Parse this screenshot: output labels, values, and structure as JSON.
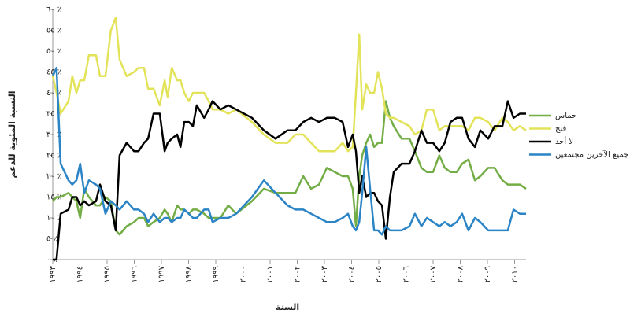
{
  "chart_data": {
    "type": "line",
    "y_label": "النسبة المئوية للدعم",
    "x_label": "السنة",
    "x": [
      1993.0,
      1993.14,
      1993.29,
      1993.58,
      1993.72,
      1993.87,
      1994.01,
      1994.16,
      1994.33,
      1994.59,
      1994.74,
      1994.94,
      1995.14,
      1995.32,
      1995.46,
      1995.72,
      1995.99,
      1996.16,
      1996.36,
      1996.51,
      1996.71,
      1996.94,
      1997.12,
      1997.23,
      1997.38,
      1997.58,
      1997.7,
      1997.84,
      1998.01,
      1998.16,
      1998.3,
      1998.57,
      1998.74,
      1998.88,
      1999.17,
      1999.46,
      1999.75,
      2000.33,
      2000.77,
      2001.2,
      2001.64,
      2001.93,
      2002.22,
      2002.51,
      2002.8,
      2003.09,
      2003.38,
      2003.67,
      2003.87,
      2004.04,
      2004.16,
      2004.28,
      2004.39,
      2004.54,
      2004.68,
      2004.83,
      2004.97,
      2005.12,
      2005.26,
      2005.41,
      2005.55,
      2005.84,
      2006.13,
      2006.33,
      2006.57,
      2006.77,
      2007.0,
      2007.23,
      2007.43,
      2007.64,
      2007.87,
      2008.07,
      2008.3,
      2008.54,
      2008.74,
      2009.03,
      2009.26,
      2009.55,
      2009.75,
      2009.96,
      2010.19,
      2010.42
    ],
    "series": [
      {
        "name": "حماس",
        "color": "#73ad45",
        "values": [
          14,
          15,
          15,
          16,
          15,
          14,
          10,
          17,
          15,
          13,
          13,
          15,
          14,
          7,
          6,
          8,
          9,
          10,
          10,
          8,
          9,
          10,
          12,
          11,
          9,
          13,
          12,
          12,
          11,
          12,
          12,
          11,
          10,
          10,
          10,
          13,
          11,
          14,
          17,
          16,
          16,
          16,
          20,
          17,
          18,
          22,
          21,
          20,
          20,
          17,
          8,
          20,
          25,
          28,
          30,
          27,
          28,
          28,
          38,
          34,
          32,
          29,
          29,
          26,
          22,
          21,
          21,
          25,
          22,
          21,
          21,
          23,
          24,
          19,
          20,
          22,
          22,
          19,
          18,
          18,
          18,
          17
        ]
      },
      {
        "name": "فتح",
        "color": "#e3e35a",
        "values": [
          44,
          40,
          35,
          38,
          44,
          40,
          43,
          43,
          49,
          49,
          44,
          44,
          55,
          58,
          48,
          44,
          45,
          46,
          46,
          41,
          41,
          37,
          43,
          39,
          46,
          43,
          43,
          40,
          38,
          40,
          40,
          40,
          38,
          36,
          36,
          35,
          36,
          33,
          30,
          28,
          28,
          30,
          30,
          28,
          26,
          26,
          26,
          28,
          26,
          27,
          40,
          54,
          36,
          42,
          40,
          40,
          45,
          41,
          35,
          34,
          34,
          33,
          32,
          30,
          31,
          36,
          36,
          31,
          32,
          32,
          32,
          32,
          31,
          34,
          34,
          33,
          31,
          34,
          33,
          31,
          32,
          31
        ]
      },
      {
        "name": "لا أحد",
        "color": "#000000",
        "values": [
          0,
          0,
          11,
          12,
          15,
          15,
          13,
          14,
          13,
          14,
          18,
          14,
          13,
          7,
          25,
          28,
          26,
          26,
          28,
          29,
          35,
          35,
          26,
          28,
          29,
          30,
          27,
          33,
          33,
          32,
          37,
          34,
          36,
          38,
          36,
          37,
          36,
          34,
          31,
          29,
          31,
          31,
          33,
          34,
          33,
          34,
          34,
          33,
          27,
          30,
          26,
          16,
          20,
          15,
          16,
          16,
          14,
          13,
          5,
          15,
          21,
          23,
          23,
          26,
          31,
          28,
          28,
          26,
          28,
          33,
          34,
          34,
          29,
          27,
          31,
          29,
          32,
          32,
          38,
          34,
          35,
          35
        ]
      },
      {
        "name": "جميع الآخرين مجتمعين",
        "color": "#2b84c6",
        "values": [
          44,
          46,
          23,
          19,
          18,
          19,
          23,
          16,
          19,
          18,
          17,
          11,
          14,
          13,
          12,
          14,
          12,
          12,
          11,
          9,
          11,
          9,
          10,
          10,
          9,
          10,
          10,
          12,
          11,
          10,
          10,
          12,
          12,
          9,
          10,
          10,
          11,
          15,
          19,
          16,
          13,
          12,
          12,
          11,
          10,
          9,
          9,
          10,
          11,
          8,
          7,
          9,
          16,
          27,
          17,
          7,
          7,
          6,
          8,
          7,
          7,
          7,
          8,
          11,
          8,
          10,
          9,
          8,
          9,
          8,
          9,
          11,
          7,
          10,
          9,
          7,
          7,
          7,
          7,
          12,
          11,
          11
        ]
      }
    ],
    "xlim": [
      1993,
      2010.42
    ],
    "xticks": [
      {
        "value": 1993,
        "label": "١٩٩٣"
      },
      {
        "value": 1994,
        "label": "١٩٩٤"
      },
      {
        "value": 1995,
        "label": "١٩٩٥"
      },
      {
        "value": 1996,
        "label": "١٩٩٦"
      },
      {
        "value": 1997,
        "label": "١٩٩٧"
      },
      {
        "value": 1998,
        "label": "١٩٩٨"
      },
      {
        "value": 1999,
        "label": "١٩٩٩"
      },
      {
        "value": 2000,
        "label": "٢٠٠٠"
      },
      {
        "value": 2001,
        "label": "٢٠٠١"
      },
      {
        "value": 2002,
        "label": "٢٠٠٢"
      },
      {
        "value": 2003,
        "label": "٢٠٠٣"
      },
      {
        "value": 2004,
        "label": "٢٠٠٤"
      },
      {
        "value": 2005,
        "label": "٢٠٠٥"
      },
      {
        "value": 2006,
        "label": "٢٠٠٦"
      },
      {
        "value": 2007,
        "label": "٢٠٠٧"
      },
      {
        "value": 2008,
        "label": "٢٠٠٨"
      },
      {
        "value": 2009,
        "label": "٢٠٠٩"
      },
      {
        "value": 2010,
        "label": "٢٠١٠"
      }
    ],
    "ylim": [
      0,
      60
    ],
    "yticks": [
      {
        "value": 0,
        "label": "٪ ٠"
      },
      {
        "value": 5,
        "label": "٪ ٥"
      },
      {
        "value": 10,
        "label": "٪ ١٠"
      },
      {
        "value": 15,
        "label": "٪ ١٥"
      },
      {
        "value": 20,
        "label": "٪ ٢٠"
      },
      {
        "value": 25,
        "label": "٪ ٢٥"
      },
      {
        "value": 30,
        "label": "٪ ٣٠"
      },
      {
        "value": 35,
        "label": "٪ ٣٥"
      },
      {
        "value": 40,
        "label": "٪ ٤٠"
      },
      {
        "value": 45,
        "label": "٪ ٤٥"
      },
      {
        "value": 50,
        "label": "٪ ٥٠"
      },
      {
        "value": 55,
        "label": "٪ ٥٥"
      },
      {
        "value": 60,
        "label": "٪ ٦٠"
      }
    ],
    "grid": false,
    "legend": "right"
  }
}
